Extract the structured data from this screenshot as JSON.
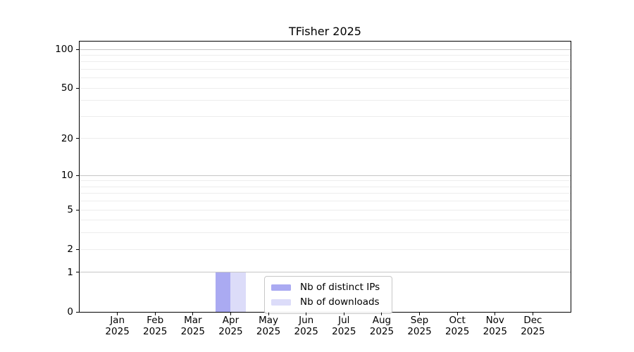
{
  "chart_data": {
    "type": "bar",
    "title": "TFisher 2025",
    "categories": [
      "Jan 2025",
      "Feb 2025",
      "Mar 2025",
      "Apr 2025",
      "May 2025",
      "Jun 2025",
      "Jul 2025",
      "Aug 2025",
      "Sep 2025",
      "Oct 2025",
      "Nov 2025",
      "Dec 2025"
    ],
    "series": [
      {
        "name": "Nb of distinct IPs",
        "color": "#aaaaf2",
        "values": [
          0,
          0,
          0,
          1,
          0,
          0,
          0,
          0,
          0,
          0,
          0,
          0
        ]
      },
      {
        "name": "Nb of downloads",
        "color": "#dcdcf9",
        "values": [
          0,
          0,
          0,
          1,
          0,
          0,
          0,
          0,
          0,
          0,
          0,
          0
        ]
      }
    ],
    "xlabel": "",
    "ylabel": "",
    "y_axis": {
      "scale": "log1p",
      "tick_labels": [
        0,
        1,
        2,
        5,
        10,
        20,
        50,
        100
      ],
      "major_gridlines": [
        1,
        10,
        100
      ],
      "minor_gridlines": [
        2,
        3,
        4,
        5,
        6,
        7,
        8,
        9,
        20,
        30,
        40,
        50,
        60,
        70,
        80,
        90
      ],
      "top_tick_value": 100
    },
    "grid": true,
    "legend_position": "lower center",
    "colors": {
      "axis": "#000000",
      "major_grid": "#c6c6c6",
      "minor_grid": "#ededed",
      "text": "#000000",
      "legend_border": "#c8c8c8"
    }
  }
}
